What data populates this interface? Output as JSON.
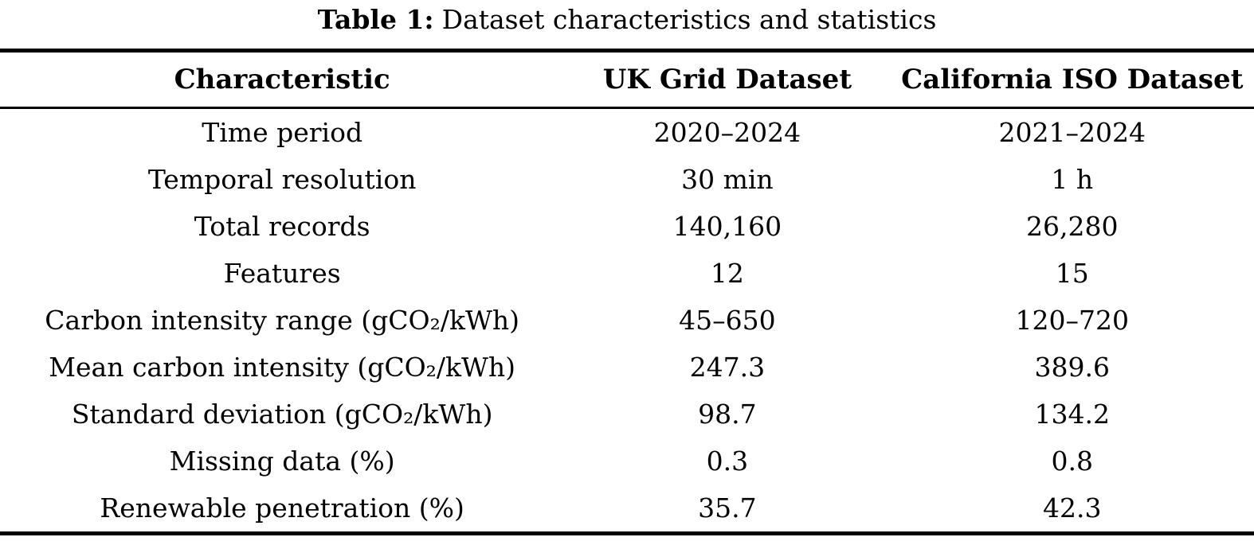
{
  "page": {
    "background_color": "#ffffff",
    "text_color": "#000000"
  },
  "caption": {
    "label": "Table 1:",
    "text": "Dataset characteristics and statistics"
  },
  "table": {
    "headers": [
      "Characteristic",
      "UK Grid Dataset",
      "California ISO Dataset"
    ],
    "rows": [
      [
        "Time period",
        "2020–2024",
        "2021–2024"
      ],
      [
        "Temporal resolution",
        "30 min",
        "1 h"
      ],
      [
        "Total records",
        "140,160",
        "26,280"
      ],
      [
        "Features",
        "12",
        "15"
      ],
      [
        "Carbon intensity range (gCO₂/kWh)",
        "45–650",
        "120–720"
      ],
      [
        "Mean carbon intensity (gCO₂/kWh)",
        "247.3",
        "389.6"
      ],
      [
        "Standard deviation (gCO₂/kWh)",
        "98.7",
        "134.2"
      ],
      [
        "Missing data (%)",
        "0.3",
        "0.8"
      ],
      [
        "Renewable penetration (%)",
        "35.7",
        "42.3"
      ]
    ]
  }
}
